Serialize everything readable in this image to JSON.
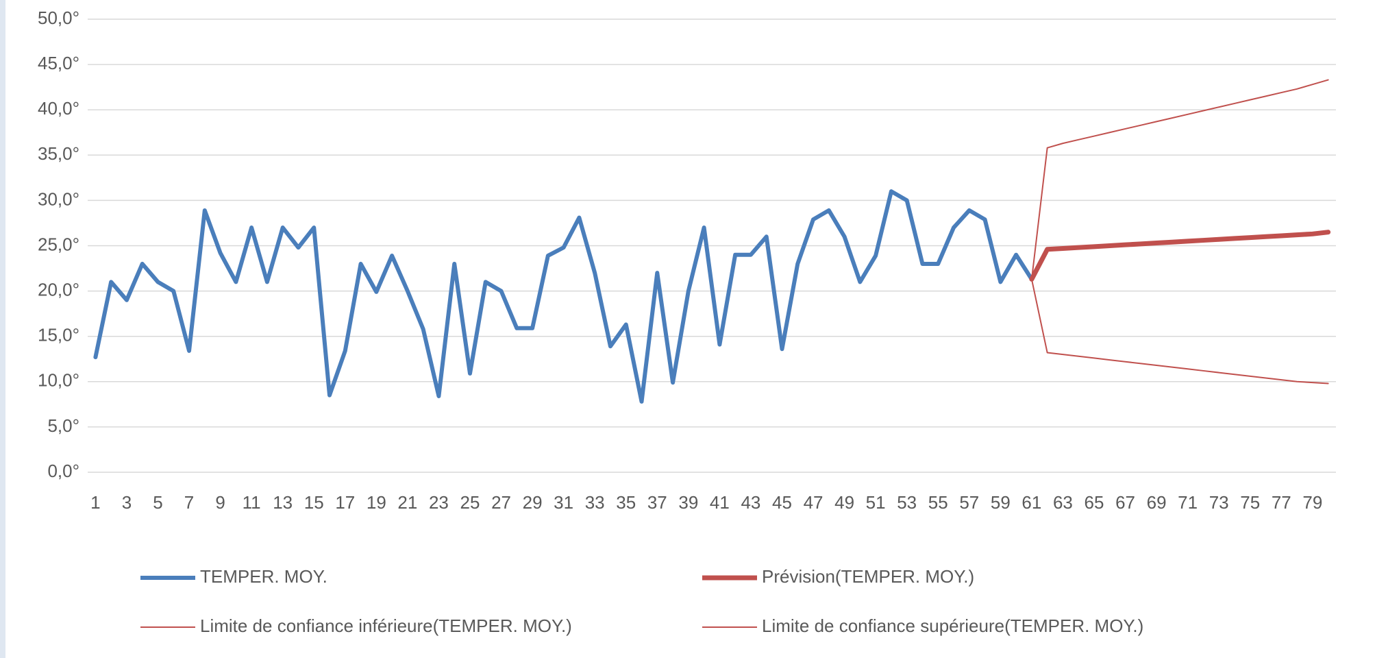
{
  "chart_data": {
    "type": "line",
    "categories": [
      1,
      null,
      3,
      null,
      5,
      null,
      7,
      null,
      9,
      null,
      11,
      null,
      13,
      null,
      15,
      null,
      17,
      null,
      19,
      null,
      21,
      null,
      23,
      null,
      25,
      null,
      27,
      null,
      29,
      null,
      31,
      null,
      33,
      null,
      35,
      null,
      37,
      null,
      39,
      null,
      41,
      null,
      43,
      null,
      45,
      null,
      47,
      null,
      49,
      null,
      51,
      null,
      53,
      null,
      55,
      null,
      57,
      null,
      59,
      null,
      61,
      null,
      63,
      null,
      65,
      null,
      67,
      null,
      69,
      null,
      71,
      null,
      73,
      null,
      75,
      null,
      77,
      null,
      79,
      null
    ],
    "series": [
      {
        "name": "TEMPER. MOY.",
        "color": "#4a7ebb",
        "width": 6,
        "values": [
          12.7,
          21,
          19,
          23,
          21,
          20,
          13.4,
          28.9,
          24.2,
          21,
          27,
          21,
          27,
          24.8,
          27,
          8.5,
          13.4,
          23,
          19.9,
          23.9,
          20,
          15.8,
          8.4,
          23,
          10.9,
          21,
          20,
          15.9,
          15.9,
          23.9,
          24.8,
          28.1,
          22,
          13.9,
          16.3,
          7.8,
          22,
          9.9,
          20,
          27,
          14.1,
          24,
          24,
          26,
          13.6,
          23,
          27.9,
          28.9,
          26,
          21,
          23.9,
          31,
          30,
          23,
          23,
          27,
          28.9,
          27.9,
          21,
          24,
          21.3,
          null,
          null,
          null,
          null,
          null,
          null,
          null,
          null,
          null,
          null,
          null,
          null,
          null,
          null,
          null,
          null,
          null,
          null,
          null
        ]
      },
      {
        "name": "Prévision(TEMPER. MOY.)",
        "color": "#c0504d",
        "width": 7,
        "values": [
          null,
          null,
          null,
          null,
          null,
          null,
          null,
          null,
          null,
          null,
          null,
          null,
          null,
          null,
          null,
          null,
          null,
          null,
          null,
          null,
          null,
          null,
          null,
          null,
          null,
          null,
          null,
          null,
          null,
          null,
          null,
          null,
          null,
          null,
          null,
          null,
          null,
          null,
          null,
          null,
          null,
          null,
          null,
          null,
          null,
          null,
          null,
          null,
          null,
          null,
          null,
          null,
          null,
          null,
          null,
          null,
          null,
          null,
          null,
          null,
          21.3,
          24.6,
          24.7,
          24.8,
          24.9,
          25.0,
          25.1,
          25.2,
          25.3,
          25.4,
          25.5,
          25.6,
          25.7,
          25.8,
          25.9,
          26.0,
          26.1,
          26.2,
          26.3,
          26.5
        ]
      },
      {
        "name": "Limite de confiance inférieure(TEMPER. MOY.)",
        "color": "#c0504d",
        "width": 2,
        "values": [
          null,
          null,
          null,
          null,
          null,
          null,
          null,
          null,
          null,
          null,
          null,
          null,
          null,
          null,
          null,
          null,
          null,
          null,
          null,
          null,
          null,
          null,
          null,
          null,
          null,
          null,
          null,
          null,
          null,
          null,
          null,
          null,
          null,
          null,
          null,
          null,
          null,
          null,
          null,
          null,
          null,
          null,
          null,
          null,
          null,
          null,
          null,
          null,
          null,
          null,
          null,
          null,
          null,
          null,
          null,
          null,
          null,
          null,
          null,
          null,
          21.3,
          13.2,
          13.0,
          12.8,
          12.6,
          12.4,
          12.2,
          12.0,
          11.8,
          11.6,
          11.4,
          11.2,
          11.0,
          10.8,
          10.6,
          10.4,
          10.2,
          10.0,
          9.9,
          9.8
        ]
      },
      {
        "name": "Limite de confiance supérieure(TEMPER. MOY.)",
        "color": "#c0504d",
        "width": 2,
        "values": [
          null,
          null,
          null,
          null,
          null,
          null,
          null,
          null,
          null,
          null,
          null,
          null,
          null,
          null,
          null,
          null,
          null,
          null,
          null,
          null,
          null,
          null,
          null,
          null,
          null,
          null,
          null,
          null,
          null,
          null,
          null,
          null,
          null,
          null,
          null,
          null,
          null,
          null,
          null,
          null,
          null,
          null,
          null,
          null,
          null,
          null,
          null,
          null,
          null,
          null,
          null,
          null,
          null,
          null,
          null,
          null,
          null,
          null,
          null,
          null,
          21.3,
          35.8,
          36.3,
          36.7,
          37.1,
          37.5,
          37.9,
          38.3,
          38.7,
          39.1,
          39.5,
          39.9,
          40.3,
          40.7,
          41.1,
          41.5,
          41.9,
          42.3,
          42.8,
          43.3
        ]
      }
    ],
    "ylim": [
      0,
      50
    ],
    "yticks": [
      {
        "value": 0,
        "label": "0,0°"
      },
      {
        "value": 5,
        "label": "5,0°"
      },
      {
        "value": 10,
        "label": "10,0°"
      },
      {
        "value": 15,
        "label": "15,0°"
      },
      {
        "value": 20,
        "label": "20,0°"
      },
      {
        "value": 25,
        "label": "25,0°"
      },
      {
        "value": 30,
        "label": "30,0°"
      },
      {
        "value": 35,
        "label": "35,0°"
      },
      {
        "value": 40,
        "label": "40,0°"
      },
      {
        "value": 45,
        "label": "45,0°"
      },
      {
        "value": 50,
        "label": "50,0°"
      }
    ],
    "grid": true,
    "legend": "bottom"
  }
}
